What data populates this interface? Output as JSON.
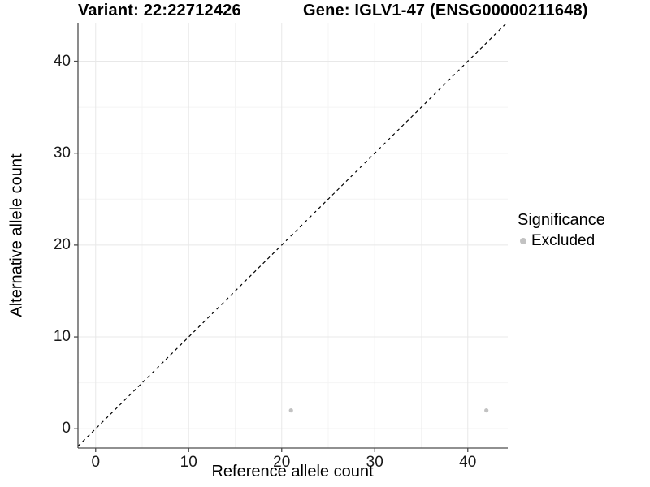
{
  "chart_data": {
    "type": "scatter",
    "title_left": "Variant: 22:22712426",
    "title_right": "Gene: IGLV1-47 (ENSG00000211648)",
    "xlabel": "Reference allele count",
    "ylabel": "Alternative allele count",
    "xlim": [
      -1.9,
      44.3
    ],
    "ylim": [
      -2.1,
      44.2
    ],
    "x_ticks": [
      0,
      10,
      20,
      30,
      40
    ],
    "y_ticks": [
      0,
      10,
      20,
      30,
      40
    ],
    "x_minor_ticks": [
      5,
      15,
      25,
      35
    ],
    "y_minor_ticks": [
      5,
      15,
      25,
      35
    ],
    "grid": true,
    "legend_position": "right",
    "identity_line": {
      "equation": "y = x",
      "style": "dashed",
      "color": "#000000"
    },
    "series": [
      {
        "name": "Excluded",
        "color": "#c2c2c2",
        "points": [
          {
            "x": 21,
            "y": 2
          },
          {
            "x": 42,
            "y": 2
          }
        ]
      }
    ],
    "legend": {
      "title": "Significance",
      "items": [
        {
          "label": "Excluded",
          "color": "#c2c2c2"
        }
      ]
    },
    "colors": {
      "background": "#ffffff",
      "grid_major": "#e8e8e8",
      "grid_minor": "#f4f4f4",
      "axis_line": "#4d4d4d",
      "tick_text": "#1a1a1a",
      "point": "#c2c2c2"
    }
  }
}
